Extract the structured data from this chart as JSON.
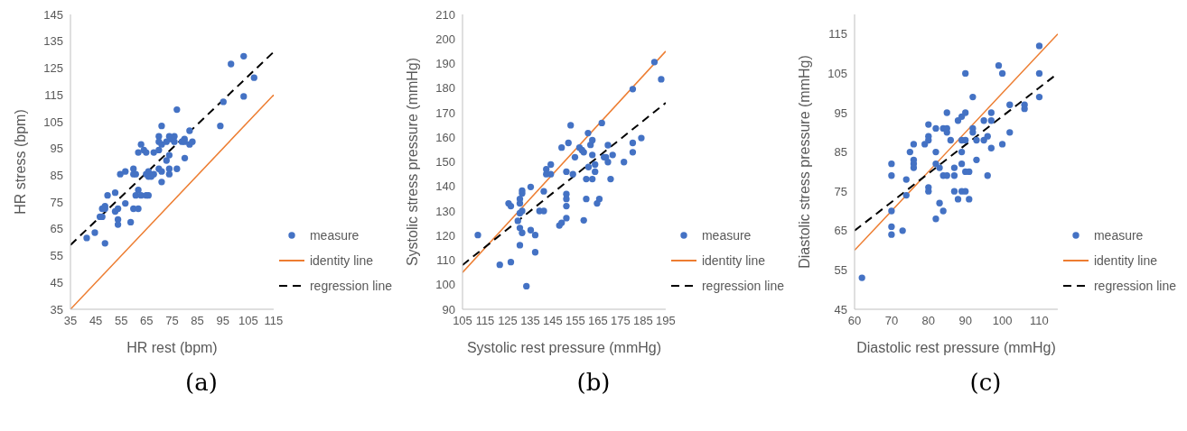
{
  "chart_data": [
    {
      "type": "scatter",
      "title": "(a)",
      "xlabel": "HR rest (bpm)",
      "ylabel": "HR stress (bpm)",
      "xlim": [
        35,
        115
      ],
      "xticks": [
        35,
        45,
        55,
        65,
        75,
        85,
        95,
        105,
        115
      ],
      "ylim": [
        35,
        145
      ],
      "yticks": [
        35,
        45,
        55,
        65,
        75,
        85,
        95,
        105,
        115,
        125,
        135,
        145
      ],
      "grid": false,
      "legend": "bottom right",
      "series": [
        {
          "name": "measure",
          "type": "scatter",
          "marker": "circle",
          "color": "#4472c4",
          "x": [
            41.4,
            44.6,
            46.6,
            47.5,
            47.5,
            48.6,
            48.6,
            49.6,
            48.6,
            52.6,
            52.6,
            53.7,
            53.7,
            53.7,
            54.6,
            56.6,
            56.6,
            58.7,
            59.8,
            59.8,
            60.7,
            59.8,
            60.7,
            61.7,
            61.7,
            61.7,
            62.8,
            62.8,
            63.9,
            64.8,
            64.8,
            64.8,
            65.7,
            65.7,
            65.7,
            66.8,
            67.8,
            67.8,
            69.8,
            69.8,
            69.8,
            69.8,
            70.9,
            70.9,
            70.9,
            70.9,
            72.8,
            72.8,
            73.9,
            73.9,
            73.9,
            73.9,
            74.8,
            75.9,
            75.9,
            76.9,
            76.9,
            78.9,
            79.9,
            79.9,
            80.0,
            81.9,
            81.9,
            83.0,
            94.0,
            95.2,
            98.2,
            103.2,
            103.2,
            107.3
          ],
          "values": [
            61.6,
            63.6,
            69.5,
            69.5,
            72.5,
            73.5,
            72.5,
            77.5,
            59.6,
            78.5,
            71.5,
            72.5,
            68.5,
            66.6,
            85.4,
            86.4,
            74.5,
            67.5,
            87.4,
            85.4,
            85.4,
            72.5,
            77.5,
            79.5,
            72.5,
            93.5,
            96.5,
            77.5,
            94.4,
            93.5,
            77.5,
            85.4,
            86.4,
            84.5,
            77.5,
            84.5,
            85.4,
            93.5,
            99.5,
            97.5,
            94.4,
            87.4,
            103.4,
            96.5,
            86.4,
            82.5,
            90.5,
            97.5,
            99.5,
            92.5,
            87.4,
            85.4,
            98.5,
            99.5,
            97.5,
            109.5,
            87.4,
            97.5,
            98.5,
            97.5,
            91.4,
            101.6,
            96.5,
            97.5,
            103.4,
            112.4,
            126.5,
            129.4,
            114.4,
            121.4
          ]
        },
        {
          "name": "identity line",
          "type": "line",
          "marker": "none",
          "line_style": "solid",
          "color": "#ed7d31",
          "x": [
            35,
            115
          ],
          "values": [
            35,
            115
          ]
        },
        {
          "name": "regression line",
          "type": "line",
          "marker": "none",
          "line_style": "dashed",
          "color": "#000000",
          "x": [
            35,
            115
          ],
          "values": [
            59,
            131
          ]
        }
      ]
    },
    {
      "type": "scatter",
      "title": "(b)",
      "xlabel": "Systolic rest pressure (mmHg)",
      "ylabel": "Systolic stress pressure (mmHg)",
      "xlim": [
        105,
        195
      ],
      "xticks": [
        105,
        115,
        125,
        135,
        145,
        155,
        165,
        175,
        185,
        195
      ],
      "ylim": [
        90,
        210
      ],
      "yticks": [
        90,
        100,
        110,
        120,
        130,
        140,
        150,
        160,
        170,
        180,
        190,
        200,
        210
      ],
      "grid": false,
      "legend": "bottom right",
      "series": [
        {
          "name": "measure",
          "type": "scatter",
          "marker": "circle",
          "color": "#4472c4",
          "x": [
            111.8,
            121.5,
            125.4,
            126.4,
            126.4,
            129.5,
            130.4,
            130.4,
            130.4,
            130.4,
            130.4,
            131.4,
            131.4,
            131.4,
            131.4,
            133.3,
            135.2,
            135.2,
            137.2,
            137.2,
            139.1,
            141.0,
            141.0,
            142.1,
            142.1,
            144.1,
            144.1,
            147.9,
            148.9,
            148.9,
            151.0,
            151.0,
            151.0,
            151.0,
            151.0,
            151.9,
            152.9,
            153.9,
            154.8,
            156.8,
            157.9,
            158.7,
            158.7,
            159.8,
            159.8,
            160.6,
            160.8,
            161.7,
            162.5,
            162.5,
            162.5,
            163.7,
            163.7,
            164.6,
            165.6,
            166.7,
            167.7,
            168.5,
            169.4,
            169.4,
            170.6,
            171.5,
            176.5,
            180.4,
            180.4,
            180.4,
            184.2,
            190.0,
            193.0
          ],
          "values": [
            120.2,
            108.1,
            133.1,
            132.0,
            109.2,
            126.0,
            133.1,
            134.9,
            129.1,
            123.1,
            116.1,
            130.0,
            137.2,
            138.3,
            121.1,
            99.4,
            139.8,
            122.2,
            120.2,
            113.2,
            130.0,
            138.0,
            130.0,
            147.0,
            145.0,
            148.9,
            145.0,
            124.1,
            125.2,
            155.8,
            146.0,
            136.9,
            134.9,
            132.0,
            127.1,
            157.7,
            164.9,
            145.0,
            151.9,
            155.8,
            154.8,
            153.9,
            126.2,
            143.0,
            134.9,
            161.7,
            147.9,
            156.9,
            158.8,
            152.8,
            143.0,
            148.9,
            146.0,
            133.1,
            134.9,
            165.8,
            151.9,
            151.9,
            156.8,
            149.9,
            143.0,
            152.8,
            149.9,
            153.9,
            157.7,
            179.6,
            159.7,
            190.6,
            183.6
          ]
        },
        {
          "name": "identity line",
          "type": "line",
          "marker": "none",
          "line_style": "solid",
          "color": "#ed7d31",
          "x": [
            105,
            195
          ],
          "values": [
            105,
            195
          ]
        },
        {
          "name": "regression line",
          "type": "line",
          "marker": "none",
          "line_style": "dashed",
          "color": "#000000",
          "x": [
            105,
            195
          ],
          "values": [
            108,
            174
          ]
        }
      ]
    },
    {
      "type": "scatter",
      "title": "(c)",
      "xlabel": "Diastolic rest pressure (mmHg)",
      "ylabel": "Diastolic stress pressure (mmHg)",
      "xlim": [
        60,
        115
      ],
      "xticks": [
        60,
        70,
        80,
        90,
        100,
        110
      ],
      "ylim": [
        45,
        120
      ],
      "yticks": [
        45,
        55,
        65,
        75,
        85,
        95,
        105,
        115
      ],
      "grid": false,
      "legend": "bottom right",
      "series": [
        {
          "name": "measure",
          "type": "scatter",
          "marker": "circle",
          "color": "#4472c4",
          "x": [
            62,
            70,
            70,
            70,
            70,
            70,
            73,
            74,
            74,
            75,
            76,
            76,
            76,
            76,
            79,
            80,
            80,
            80,
            80,
            80,
            82,
            82,
            82,
            82,
            83,
            83,
            84,
            84,
            84,
            85,
            85,
            85,
            85,
            86,
            87,
            87,
            87,
            88,
            88,
            89,
            89,
            89,
            89,
            89,
            90,
            90,
            90,
            90,
            90,
            91,
            91,
            92,
            92,
            92,
            93,
            93,
            95,
            95,
            96,
            96,
            97,
            97,
            97,
            99,
            100,
            100,
            102,
            102,
            106,
            106,
            110,
            110,
            110
          ],
          "values": [
            53,
            82,
            79,
            70,
            66,
            64,
            65,
            78,
            74,
            85,
            87,
            83,
            82,
            81,
            87,
            92,
            89,
            88,
            76,
            75,
            91,
            85,
            82,
            68,
            81,
            72,
            91,
            79,
            70,
            95,
            91,
            90,
            79,
            88,
            81,
            79,
            75,
            93,
            73,
            94,
            88,
            85,
            82,
            75,
            105,
            95,
            88,
            80,
            75,
            80,
            73,
            99,
            91,
            90,
            88,
            83,
            93,
            88,
            89,
            79,
            95,
            93,
            86,
            107,
            105,
            87,
            97,
            90,
            97,
            96,
            112,
            105,
            99
          ]
        },
        {
          "name": "identity line",
          "type": "line",
          "marker": "none",
          "line_style": "solid",
          "color": "#ed7d31",
          "x": [
            60,
            115
          ],
          "values": [
            60,
            115
          ]
        },
        {
          "name": "regression line",
          "type": "line",
          "marker": "none",
          "line_style": "dashed",
          "color": "#000000",
          "x": [
            60,
            115
          ],
          "values": [
            65,
            105
          ]
        }
      ]
    }
  ]
}
